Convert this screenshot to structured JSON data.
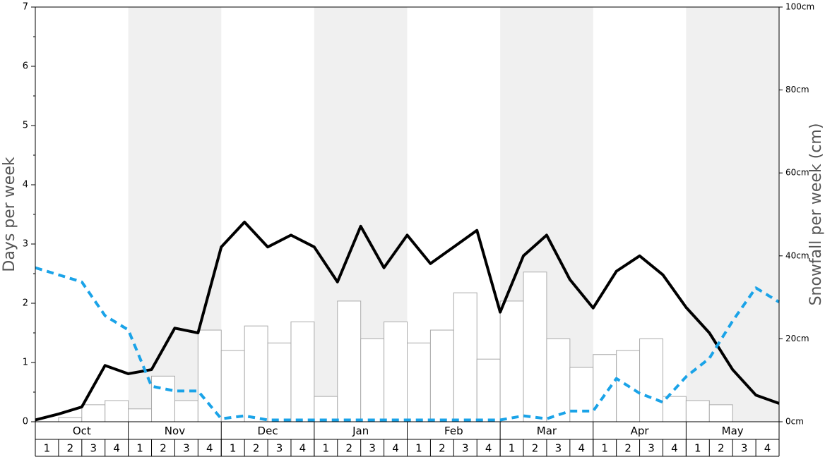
{
  "chart_data": {
    "type": "bar",
    "ylabel": "Days per week",
    "y2label": "Snowfall per week (cm)",
    "ylim": [
      0,
      7
    ],
    "yticks": [
      0,
      1,
      2,
      3,
      4,
      5,
      6,
      7
    ],
    "y2lim": [
      0,
      100
    ],
    "y2ticks": [
      {
        "value": 0,
        "label": "0cm"
      },
      {
        "value": 20,
        "label": "20cm"
      },
      {
        "value": 40,
        "label": "40cm"
      },
      {
        "value": 60,
        "label": "60cm"
      },
      {
        "value": 80,
        "label": "80cm"
      },
      {
        "value": 100,
        "label": "100cm"
      }
    ],
    "xlim": [
      0,
      32
    ],
    "months": [
      "Oct",
      "Nov",
      "Dec",
      "Jan",
      "Feb",
      "Mar",
      "Apr",
      "May"
    ],
    "categories": [
      "1",
      "2",
      "3",
      "4",
      "1",
      "2",
      "3",
      "4",
      "1",
      "2",
      "3",
      "4",
      "1",
      "2",
      "3",
      "4",
      "1",
      "2",
      "3",
      "4",
      "1",
      "2",
      "3",
      "4",
      "1",
      "2",
      "3",
      "4",
      "1",
      "2",
      "3",
      "4"
    ],
    "series": [
      {
        "type": "bar",
        "axis": "y2",
        "color": "#ffffff",
        "values": [
          0,
          1,
          4.1,
          5.1,
          3.1,
          11,
          5.1,
          22.1,
          17.2,
          23.1,
          19,
          24.1,
          6.1,
          29.1,
          20,
          24.1,
          19,
          22.1,
          31.1,
          15.1,
          29.1,
          36.1,
          20,
          13.1,
          16.2,
          17.2,
          20,
          6.1,
          5.1,
          4.1,
          0,
          0
        ]
      },
      {
        "type": "line",
        "color": "#000000",
        "x": [
          0,
          1,
          2,
          3,
          4,
          5,
          6,
          7,
          8,
          9,
          10,
          11,
          12,
          13,
          14,
          15,
          16,
          17,
          18,
          19,
          20,
          21,
          22,
          23,
          24,
          25,
          26,
          27,
          28,
          29,
          30,
          31,
          32
        ],
        "values": [
          0.03,
          0.13,
          0.25,
          0.95,
          0.81,
          0.88,
          1.58,
          1.5,
          2.95,
          3.37,
          2.95,
          3.15,
          2.95,
          2.36,
          3.3,
          2.6,
          3.15,
          2.67,
          2.95,
          3.23,
          1.85,
          2.8,
          3.15,
          2.4,
          1.92,
          2.54,
          2.8,
          2.48,
          1.93,
          1.5,
          0.88,
          0.45,
          0.31
        ]
      },
      {
        "type": "line",
        "color": "#1aa3e8",
        "dashed": true,
        "x": [
          0,
          1,
          2,
          3,
          4,
          5,
          6,
          7,
          8,
          9,
          10,
          11,
          12,
          13,
          14,
          15,
          16,
          17,
          18,
          19,
          20,
          21,
          22,
          23,
          24,
          25,
          26,
          27,
          28,
          29,
          30,
          31,
          32
        ],
        "values": [
          2.6,
          2.48,
          2.36,
          1.79,
          1.55,
          0.6,
          0.52,
          0.52,
          0.05,
          0.1,
          0.03,
          0.03,
          0.03,
          0.03,
          0.03,
          0.03,
          0.03,
          0.03,
          0.03,
          0.03,
          0.03,
          0.1,
          0.05,
          0.18,
          0.18,
          0.73,
          0.48,
          0.33,
          0.76,
          1.07,
          1.7,
          2.26,
          2.02
        ]
      }
    ]
  }
}
